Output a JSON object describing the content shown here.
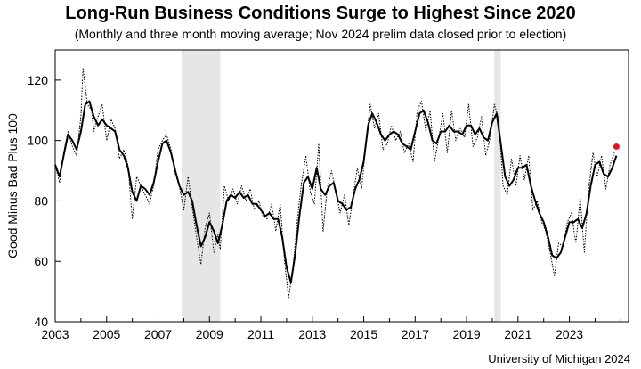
{
  "chart_data": {
    "type": "line",
    "title": "Long-Run Business Conditions Surge to Highest Since 2020",
    "subtitle": "(Monthly and three month moving average; Nov 2024 prelim data closed prior to election)",
    "ylabel": "Good Minus Bad Plus 100",
    "xlabel": "",
    "source": "University of Michigan 2024",
    "xlim": [
      2003.0,
      2025.3
    ],
    "ylim": [
      40,
      130
    ],
    "y_ticks": [
      40,
      60,
      80,
      100,
      120
    ],
    "x_ticks": [
      2003,
      2005,
      2007,
      2009,
      2011,
      2013,
      2015,
      2017,
      2019,
      2021,
      2023
    ],
    "recessions": [
      [
        2007.92,
        2009.42
      ],
      [
        2020.08,
        2020.33
      ]
    ],
    "series_style": {
      "monthly": "dotted",
      "moving_average": "solid"
    },
    "series": [
      {
        "style": "dotted",
        "points": [
          [
            2003.0,
            92
          ],
          [
            2003.17,
            86
          ],
          [
            2003.33,
            96
          ],
          [
            2003.5,
            103
          ],
          [
            2003.67,
            98
          ],
          [
            2003.83,
            95
          ],
          [
            2004.0,
            108
          ],
          [
            2004.08,
            124
          ],
          [
            2004.25,
            112
          ],
          [
            2004.42,
            110
          ],
          [
            2004.5,
            103
          ],
          [
            2004.67,
            108
          ],
          [
            2004.83,
            112
          ],
          [
            2005.0,
            100
          ],
          [
            2005.17,
            107
          ],
          [
            2005.33,
            104
          ],
          [
            2005.5,
            94
          ],
          [
            2005.67,
            97
          ],
          [
            2005.83,
            92
          ],
          [
            2006.0,
            74
          ],
          [
            2006.17,
            88
          ],
          [
            2006.33,
            85
          ],
          [
            2006.5,
            82
          ],
          [
            2006.67,
            79
          ],
          [
            2006.83,
            85
          ],
          [
            2007.0,
            97
          ],
          [
            2007.17,
            100
          ],
          [
            2007.33,
            102
          ],
          [
            2007.5,
            97
          ],
          [
            2007.67,
            89
          ],
          [
            2007.83,
            85
          ],
          [
            2008.0,
            77
          ],
          [
            2008.17,
            88
          ],
          [
            2008.33,
            78
          ],
          [
            2008.5,
            68
          ],
          [
            2008.67,
            59
          ],
          [
            2008.83,
            71
          ],
          [
            2009.0,
            76
          ],
          [
            2009.17,
            63
          ],
          [
            2009.33,
            69
          ],
          [
            2009.42,
            64
          ],
          [
            2009.58,
            85
          ],
          [
            2009.75,
            80
          ],
          [
            2009.92,
            84
          ],
          [
            2010.08,
            79
          ],
          [
            2010.25,
            85
          ],
          [
            2010.42,
            80
          ],
          [
            2010.58,
            84
          ],
          [
            2010.75,
            77
          ],
          [
            2010.92,
            80
          ],
          [
            2011.08,
            75
          ],
          [
            2011.25,
            74
          ],
          [
            2011.42,
            79
          ],
          [
            2011.58,
            70
          ],
          [
            2011.75,
            79
          ],
          [
            2011.92,
            60
          ],
          [
            2012.08,
            48
          ],
          [
            2012.25,
            58
          ],
          [
            2012.42,
            74
          ],
          [
            2012.58,
            86
          ],
          [
            2012.75,
            95
          ],
          [
            2012.92,
            83
          ],
          [
            2013.08,
            79
          ],
          [
            2013.25,
            99
          ],
          [
            2013.42,
            70
          ],
          [
            2013.58,
            84
          ],
          [
            2013.75,
            90
          ],
          [
            2013.92,
            83
          ],
          [
            2014.08,
            76
          ],
          [
            2014.25,
            82
          ],
          [
            2014.42,
            72
          ],
          [
            2014.58,
            81
          ],
          [
            2014.75,
            91
          ],
          [
            2014.92,
            84
          ],
          [
            2015.08,
            99
          ],
          [
            2015.25,
            112
          ],
          [
            2015.42,
            104
          ],
          [
            2015.58,
            109
          ],
          [
            2015.75,
            97
          ],
          [
            2015.92,
            99
          ],
          [
            2016.08,
            105
          ],
          [
            2016.25,
            100
          ],
          [
            2016.42,
            103
          ],
          [
            2016.58,
            96
          ],
          [
            2016.75,
            99
          ],
          [
            2016.92,
            93
          ],
          [
            2017.08,
            110
          ],
          [
            2017.25,
            113
          ],
          [
            2017.42,
            103
          ],
          [
            2017.58,
            110
          ],
          [
            2017.75,
            93
          ],
          [
            2017.92,
            101
          ],
          [
            2018.08,
            109
          ],
          [
            2018.25,
            96
          ],
          [
            2018.42,
            110
          ],
          [
            2018.58,
            100
          ],
          [
            2018.75,
            104
          ],
          [
            2018.92,
            101
          ],
          [
            2019.08,
            112
          ],
          [
            2019.25,
            98
          ],
          [
            2019.42,
            101
          ],
          [
            2019.58,
            108
          ],
          [
            2019.75,
            95
          ],
          [
            2019.92,
            101
          ],
          [
            2020.08,
            112
          ],
          [
            2020.25,
            107
          ],
          [
            2020.42,
            85
          ],
          [
            2020.58,
            82
          ],
          [
            2020.75,
            94
          ],
          [
            2020.92,
            85
          ],
          [
            2021.08,
            95
          ],
          [
            2021.25,
            87
          ],
          [
            2021.42,
            95
          ],
          [
            2021.58,
            77
          ],
          [
            2021.75,
            80
          ],
          [
            2021.92,
            73
          ],
          [
            2022.08,
            70
          ],
          [
            2022.25,
            63
          ],
          [
            2022.42,
            55
          ],
          [
            2022.58,
            66
          ],
          [
            2022.75,
            65
          ],
          [
            2022.92,
            73
          ],
          [
            2023.08,
            76
          ],
          [
            2023.25,
            66
          ],
          [
            2023.42,
            81
          ],
          [
            2023.58,
            63
          ],
          [
            2023.75,
            84
          ],
          [
            2023.92,
            96
          ],
          [
            2024.08,
            88
          ],
          [
            2024.25,
            95
          ],
          [
            2024.42,
            84
          ],
          [
            2024.58,
            92
          ],
          [
            2024.75,
            96
          ]
        ]
      },
      {
        "style": "solid",
        "points": [
          [
            2003.0,
            92
          ],
          [
            2003.17,
            88
          ],
          [
            2003.33,
            95
          ],
          [
            2003.5,
            102
          ],
          [
            2003.67,
            100
          ],
          [
            2003.83,
            97
          ],
          [
            2004.0,
            103
          ],
          [
            2004.17,
            112
          ],
          [
            2004.33,
            113
          ],
          [
            2004.5,
            108
          ],
          [
            2004.67,
            105
          ],
          [
            2004.83,
            107
          ],
          [
            2005.0,
            105
          ],
          [
            2005.17,
            104
          ],
          [
            2005.33,
            103
          ],
          [
            2005.5,
            97
          ],
          [
            2005.67,
            95
          ],
          [
            2005.83,
            91
          ],
          [
            2006.0,
            83
          ],
          [
            2006.17,
            80
          ],
          [
            2006.33,
            85
          ],
          [
            2006.5,
            84
          ],
          [
            2006.67,
            82
          ],
          [
            2006.83,
            86
          ],
          [
            2007.0,
            93
          ],
          [
            2007.17,
            99
          ],
          [
            2007.33,
            100
          ],
          [
            2007.5,
            96
          ],
          [
            2007.67,
            90
          ],
          [
            2007.83,
            85
          ],
          [
            2008.0,
            82
          ],
          [
            2008.17,
            83
          ],
          [
            2008.33,
            80
          ],
          [
            2008.5,
            72
          ],
          [
            2008.67,
            65
          ],
          [
            2008.83,
            68
          ],
          [
            2009.0,
            73
          ],
          [
            2009.17,
            70
          ],
          [
            2009.33,
            66
          ],
          [
            2009.5,
            72
          ],
          [
            2009.67,
            80
          ],
          [
            2009.83,
            82
          ],
          [
            2010.0,
            81
          ],
          [
            2010.17,
            83
          ],
          [
            2010.33,
            81
          ],
          [
            2010.5,
            82
          ],
          [
            2010.67,
            79
          ],
          [
            2010.83,
            79
          ],
          [
            2011.0,
            77
          ],
          [
            2011.17,
            75
          ],
          [
            2011.33,
            76
          ],
          [
            2011.5,
            74
          ],
          [
            2011.67,
            74
          ],
          [
            2011.83,
            68
          ],
          [
            2012.0,
            58
          ],
          [
            2012.17,
            53
          ],
          [
            2012.33,
            62
          ],
          [
            2012.5,
            75
          ],
          [
            2012.67,
            86
          ],
          [
            2012.83,
            88
          ],
          [
            2013.0,
            84
          ],
          [
            2013.17,
            91
          ],
          [
            2013.33,
            84
          ],
          [
            2013.5,
            82
          ],
          [
            2013.67,
            85
          ],
          [
            2013.83,
            86
          ],
          [
            2014.0,
            80
          ],
          [
            2014.17,
            79
          ],
          [
            2014.33,
            77
          ],
          [
            2014.5,
            78
          ],
          [
            2014.67,
            84
          ],
          [
            2014.83,
            87
          ],
          [
            2015.0,
            93
          ],
          [
            2015.17,
            105
          ],
          [
            2015.33,
            109
          ],
          [
            2015.5,
            106
          ],
          [
            2015.67,
            102
          ],
          [
            2015.83,
            100
          ],
          [
            2016.0,
            102
          ],
          [
            2016.17,
            103
          ],
          [
            2016.33,
            102
          ],
          [
            2016.5,
            99
          ],
          [
            2016.67,
            98
          ],
          [
            2016.83,
            97
          ],
          [
            2017.0,
            103
          ],
          [
            2017.17,
            109
          ],
          [
            2017.33,
            110
          ],
          [
            2017.5,
            106
          ],
          [
            2017.67,
            100
          ],
          [
            2017.83,
            99
          ],
          [
            2018.0,
            103
          ],
          [
            2018.17,
            103
          ],
          [
            2018.33,
            105
          ],
          [
            2018.5,
            103
          ],
          [
            2018.67,
            103
          ],
          [
            2018.83,
            102
          ],
          [
            2019.0,
            105
          ],
          [
            2019.17,
            105
          ],
          [
            2019.33,
            102
          ],
          [
            2019.5,
            104
          ],
          [
            2019.67,
            101
          ],
          [
            2019.83,
            100
          ],
          [
            2020.0,
            106
          ],
          [
            2020.17,
            109
          ],
          [
            2020.33,
            99
          ],
          [
            2020.5,
            88
          ],
          [
            2020.67,
            85
          ],
          [
            2020.83,
            87
          ],
          [
            2021.0,
            91
          ],
          [
            2021.17,
            91
          ],
          [
            2021.33,
            92
          ],
          [
            2021.5,
            85
          ],
          [
            2021.67,
            80
          ],
          [
            2021.83,
            76
          ],
          [
            2022.0,
            73
          ],
          [
            2022.17,
            68
          ],
          [
            2022.33,
            62
          ],
          [
            2022.5,
            61
          ],
          [
            2022.67,
            63
          ],
          [
            2022.83,
            68
          ],
          [
            2023.0,
            73
          ],
          [
            2023.17,
            73
          ],
          [
            2023.33,
            74
          ],
          [
            2023.5,
            71
          ],
          [
            2023.67,
            76
          ],
          [
            2023.83,
            85
          ],
          [
            2024.0,
            92
          ],
          [
            2024.17,
            93
          ],
          [
            2024.33,
            89
          ],
          [
            2024.5,
            88
          ],
          [
            2024.67,
            91
          ],
          [
            2024.83,
            95
          ]
        ]
      }
    ],
    "highlight_point": {
      "x": 2024.83,
      "y": 98,
      "color": "#e8141e"
    },
    "colors": {
      "line": "#000000",
      "recession": "#e6e6e6",
      "frame": "#000000"
    }
  }
}
